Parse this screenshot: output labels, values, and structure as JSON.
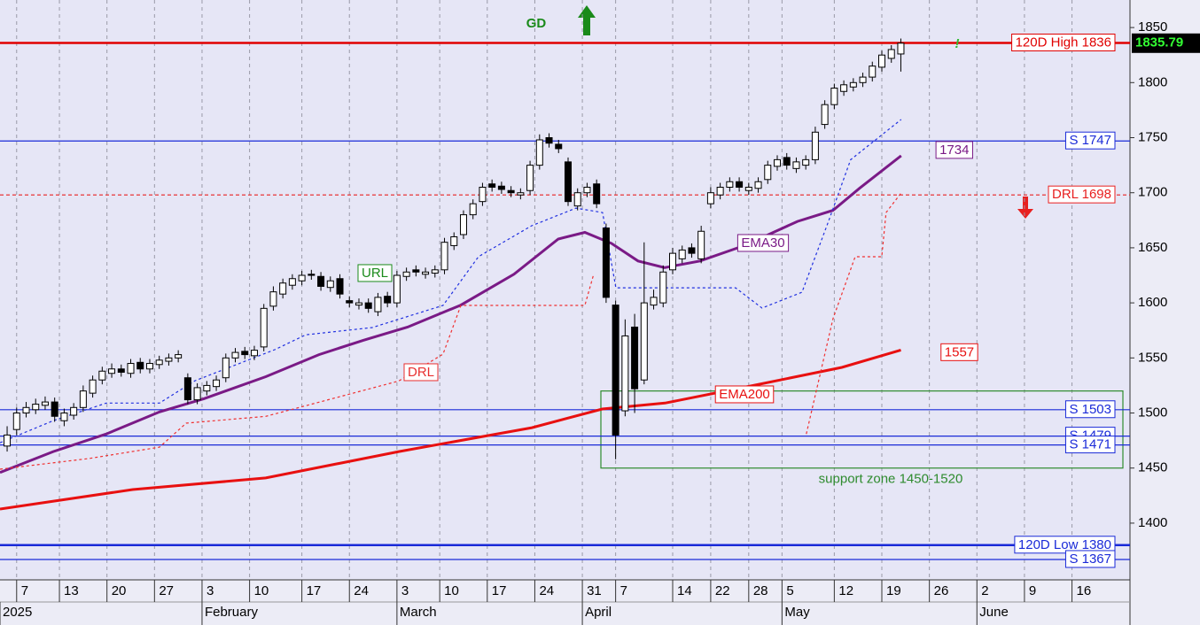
{
  "chart_data": {
    "type": "candlestick",
    "x": [
      0,
      1,
      2,
      3,
      4,
      5,
      6,
      7,
      8,
      9,
      10,
      11,
      12,
      13,
      14,
      15,
      16,
      17,
      18,
      19,
      20,
      21,
      22,
      23,
      24,
      25,
      26,
      27,
      28,
      29,
      30,
      31,
      32,
      33,
      34,
      35,
      36,
      37,
      38,
      39,
      40,
      41,
      42,
      43,
      44,
      45,
      46,
      47,
      48,
      49,
      50,
      51,
      52,
      53,
      54,
      55,
      56,
      57,
      58,
      59,
      60,
      61,
      62,
      63,
      64,
      65,
      66,
      67,
      68,
      69,
      70,
      71,
      72,
      73,
      74,
      75,
      76,
      77,
      78,
      79,
      80,
      81,
      82,
      83,
      84,
      85,
      86,
      87,
      88,
      89,
      90,
      91,
      92,
      93,
      94
    ],
    "open": [
      1470,
      1485,
      1500,
      1503,
      1507,
      1510,
      1493,
      1498,
      1505,
      1518,
      1530,
      1536,
      1540,
      1536,
      1546,
      1540,
      1544,
      1547,
      1550,
      1532,
      1512,
      1520,
      1524,
      1532,
      1550,
      1556,
      1552,
      1560,
      1597,
      1608,
      1616,
      1620,
      1626,
      1624,
      1614,
      1622,
      1602,
      1598,
      1600,
      1592,
      1606,
      1600,
      1624,
      1630,
      1626,
      1627,
      1630,
      1652,
      1662,
      1680,
      1692,
      1708,
      1706,
      1702,
      1698,
      1702,
      1725,
      1750,
      1744,
      1728,
      1688,
      1700,
      1708,
      1668,
      1598,
      1502,
      1578,
      1530,
      1598,
      1600,
      1630,
      1640,
      1650,
      1640,
      1690,
      1698,
      1705,
      1710,
      1702,
      1704,
      1712,
      1724,
      1732,
      1722,
      1725,
      1730,
      1762,
      1780,
      1792,
      1796,
      1800,
      1805,
      1814,
      1822,
      1826
    ],
    "high": [
      1488,
      1505,
      1510,
      1513,
      1515,
      1514,
      1504,
      1509,
      1525,
      1534,
      1542,
      1545,
      1544,
      1549,
      1550,
      1549,
      1552,
      1554,
      1557,
      1536,
      1527,
      1529,
      1534,
      1554,
      1559,
      1560,
      1561,
      1599,
      1615,
      1622,
      1626,
      1629,
      1630,
      1628,
      1624,
      1626,
      1606,
      1604,
      1604,
      1609,
      1610,
      1629,
      1632,
      1634,
      1632,
      1634,
      1659,
      1664,
      1684,
      1694,
      1709,
      1712,
      1710,
      1706,
      1704,
      1729,
      1753,
      1754,
      1748,
      1732,
      1704,
      1709,
      1712,
      1672,
      1602,
      1585,
      1590,
      1655,
      1612,
      1634,
      1650,
      1652,
      1654,
      1670,
      1705,
      1709,
      1714,
      1714,
      1709,
      1714,
      1729,
      1734,
      1736,
      1732,
      1734,
      1760,
      1784,
      1799,
      1802,
      1804,
      1809,
      1819,
      1829,
      1834,
      1840
    ],
    "low": [
      1465,
      1480,
      1496,
      1499,
      1503,
      1492,
      1488,
      1494,
      1501,
      1514,
      1526,
      1532,
      1533,
      1532,
      1536,
      1536,
      1540,
      1543,
      1546,
      1508,
      1508,
      1516,
      1520,
      1528,
      1546,
      1549,
      1548,
      1556,
      1593,
      1604,
      1612,
      1616,
      1621,
      1611,
      1610,
      1604,
      1596,
      1594,
      1591,
      1588,
      1596,
      1596,
      1620,
      1624,
      1622,
      1623,
      1626,
      1648,
      1658,
      1676,
      1688,
      1701,
      1699,
      1696,
      1694,
      1698,
      1721,
      1741,
      1736,
      1688,
      1684,
      1696,
      1686,
      1600,
      1458,
      1497,
      1500,
      1526,
      1594,
      1596,
      1626,
      1636,
      1641,
      1636,
      1686,
      1694,
      1701,
      1701,
      1698,
      1700,
      1708,
      1720,
      1721,
      1718,
      1721,
      1726,
      1758,
      1776,
      1788,
      1792,
      1796,
      1801,
      1810,
      1818,
      1810
    ],
    "close": [
      1480,
      1500,
      1505,
      1508,
      1510,
      1497,
      1500,
      1505,
      1520,
      1530,
      1538,
      1540,
      1537,
      1545,
      1540,
      1545,
      1548,
      1550,
      1553,
      1512,
      1523,
      1525,
      1530,
      1550,
      1555,
      1553,
      1557,
      1595,
      1610,
      1618,
      1622,
      1625,
      1625,
      1615,
      1620,
      1608,
      1600,
      1600,
      1595,
      1605,
      1600,
      1625,
      1628,
      1628,
      1628,
      1630,
      1655,
      1660,
      1680,
      1690,
      1705,
      1705,
      1703,
      1700,
      1700,
      1725,
      1748,
      1745,
      1740,
      1692,
      1700,
      1705,
      1690,
      1605,
      1480,
      1570,
      1522,
      1600,
      1605,
      1628,
      1645,
      1648,
      1645,
      1665,
      1700,
      1705,
      1710,
      1705,
      1705,
      1710,
      1725,
      1730,
      1725,
      1728,
      1730,
      1755,
      1780,
      1795,
      1798,
      1800,
      1805,
      1815,
      1825,
      1830,
      1835.79
    ],
    "up_color": "#ffffff",
    "down_color": "#000000",
    "last_price": 1835.79,
    "series": [
      {
        "name": "EMA30",
        "end_label": "1734",
        "color": "#7a1a86",
        "style": "thick",
        "x": [
          -0.75,
          4.85,
          10.44,
          16.03,
          20.69,
          27.21,
          32.8,
          37.46,
          42.12,
          47.72,
          53.31,
          57.97,
          60.76,
          63.56,
          66.36,
          69.15,
          72.88,
          77.54,
          83.13,
          86.86,
          89.65,
          94.03
        ],
        "values": [
          1446,
          1465,
          1481,
          1501,
          1513,
          1533,
          1553,
          1566,
          1578,
          1598,
          1626,
          1658,
          1664,
          1654,
          1638,
          1632,
          1638,
          1652,
          1674,
          1684,
          1704,
          1733.6
        ]
      },
      {
        "name": "EMA200",
        "end_label": "1557",
        "color": "#e81010",
        "style": "thick",
        "x": [
          -0.75,
          13.2,
          27.2,
          41.2,
          55.2,
          62.6,
          69.2,
          78.5,
          87.8,
          94
        ],
        "values": [
          1412.8,
          1430.5,
          1441,
          1465,
          1486.7,
          1503.6,
          1509,
          1525,
          1541.4,
          1557.2
        ]
      },
      {
        "color": "#2030e0",
        "style": "dashed",
        "x": [
          -0.75,
          4.85,
          10.44,
          16.03,
          19.76,
          28.15,
          31.41,
          38.4,
          45.85,
          49.58,
          55.17,
          59.83,
          62.63,
          64.03,
          70.08,
          76.61,
          79.4,
          83.6,
          86.39,
          88.72,
          94.03
        ],
        "values": [
          1473,
          1493,
          1509,
          1509,
          1529.3,
          1557.5,
          1571,
          1577.6,
          1597.7,
          1642,
          1670,
          1686,
          1682,
          1613.7,
          1613.7,
          1613.7,
          1595.3,
          1609.7,
          1674,
          1730,
          1766.5
        ]
      },
      {
        "color": "#f03030",
        "style": "dashed",
        "x": [
          -0.75,
          8.57,
          16.03,
          18.83,
          27.21,
          41.19,
          45.85,
          47.72,
          60.76,
          61.69,
          null,
          84.06,
          86.86,
          89.19,
          91.99,
          92.45,
          94.03
        ],
        "values": [
          1449,
          1458.6,
          1469,
          1490.8,
          1497,
          1529,
          1553.5,
          1597.7,
          1597.7,
          1625.8,
          null,
          1481,
          1585.6,
          1641.9,
          1641.9,
          1682,
          1699.8
        ]
      }
    ],
    "levels": [
      {
        "label": "120D High 1836",
        "value": 1836,
        "color": "#e00000",
        "style": "thick"
      },
      {
        "label": "S 1747",
        "value": 1747,
        "color": "#1a2ad8",
        "style": "solid"
      },
      {
        "label": "DRL 1698",
        "value": 1698,
        "color": "#e82020",
        "style": "dashed"
      },
      {
        "label": "S 1503",
        "value": 1503,
        "color": "#1a2ad8",
        "style": "solid"
      },
      {
        "label": "S 1479",
        "value": 1479,
        "color": "#1a2ad8",
        "style": "solid"
      },
      {
        "label": "S 1471",
        "value": 1471,
        "color": "#1a2ad8",
        "style": "solid"
      },
      {
        "label": "120D Low 1380",
        "value": 1380,
        "color": "#1a2ad8",
        "style": "thick"
      },
      {
        "label": "S 1367",
        "value": 1367,
        "color": "#1a2ad8",
        "style": "solid"
      }
    ],
    "annotations": [
      {
        "text": "GD",
        "color": "#1a8a1a"
      },
      {
        "text": "!",
        "color": "#33bb33"
      },
      {
        "text": "URL",
        "color": "#1a8a1a"
      },
      {
        "text": "DRL",
        "color": "#e83030"
      }
    ],
    "support_zone": {
      "label": "support zone 1450-1520",
      "range": [
        1450,
        1520
      ],
      "color": "#2e8b2e"
    },
    "xlim": [
      -0.75,
      118.1
    ],
    "ylim": [
      1348.5,
      1875
    ],
    "yticks": [
      1400,
      1450,
      1500,
      1550,
      1600,
      1650,
      1700,
      1750,
      1800,
      1850
    ],
    "xticks": [
      {
        "value": 1,
        "label": "7"
      },
      {
        "value": 5.5,
        "label": "13"
      },
      {
        "value": 10.5,
        "label": "20"
      },
      {
        "value": 15.5,
        "label": "27"
      },
      {
        "value": 20.5,
        "label": "3"
      },
      {
        "value": 25.5,
        "label": "10"
      },
      {
        "value": 31,
        "label": "17"
      },
      {
        "value": 36,
        "label": "24"
      },
      {
        "value": 41,
        "label": "3"
      },
      {
        "value": 45.5,
        "label": "10"
      },
      {
        "value": 50.5,
        "label": "17"
      },
      {
        "value": 55.5,
        "label": "24"
      },
      {
        "value": 60.5,
        "label": "31"
      },
      {
        "value": 64,
        "label": "7"
      },
      {
        "value": 70,
        "label": "14"
      },
      {
        "value": 74,
        "label": "22"
      },
      {
        "value": 78,
        "label": "28"
      },
      {
        "value": 81.5,
        "label": "5"
      },
      {
        "value": 87,
        "label": "12"
      },
      {
        "value": 92,
        "label": "19"
      },
      {
        "value": 97,
        "label": "26"
      },
      {
        "value": 102,
        "label": "2"
      },
      {
        "value": 107,
        "label": "9"
      },
      {
        "value": 112,
        "label": "16"
      }
    ],
    "month_ticks": [
      {
        "value": -0.75,
        "label": "2025"
      },
      {
        "value": 20.5,
        "label": "February"
      },
      {
        "value": 41,
        "label": "March"
      },
      {
        "value": 60.5,
        "label": "April"
      },
      {
        "value": 81.5,
        "label": "May"
      },
      {
        "value": 102,
        "label": "June"
      }
    ],
    "grid": "x"
  }
}
